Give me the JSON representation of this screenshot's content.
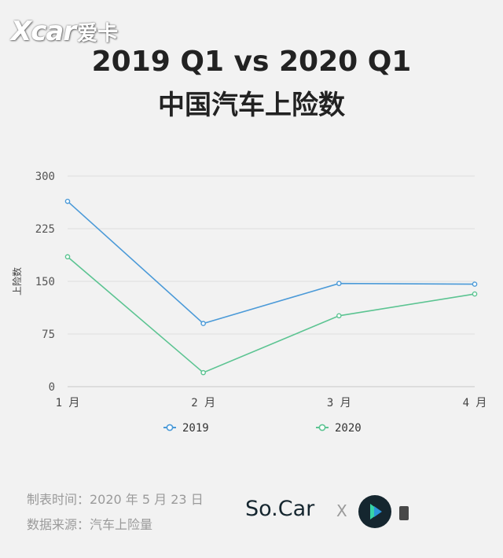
{
  "watermark": {
    "logo": "Xcar",
    "cn": "爱卡"
  },
  "title_line1": "2019 Q1 vs 2020 Q1",
  "title_line2": "中国汽车上险数",
  "chart_data": {
    "type": "line",
    "categories": [
      "1 月",
      "2 月",
      "3 月",
      "4 月"
    ],
    "series": [
      {
        "name": "2019",
        "values": [
          264,
          90,
          147,
          146
        ],
        "color": "#4b9ad8"
      },
      {
        "name": "2020",
        "values": [
          185,
          20,
          101,
          132
        ],
        "color": "#5cc492"
      }
    ],
    "title": "2019 Q1 vs 2020 Q1 中国汽车上险数",
    "xlabel": "",
    "ylabel": "上险数",
    "ylim": [
      0,
      300
    ],
    "yticks": [
      0,
      75,
      150,
      225,
      300
    ],
    "grid": true,
    "legend": "bottom"
  },
  "footer": {
    "line1": "制表时间：2020 年 5 月 23 日",
    "line2": "数据来源：汽车上险量"
  },
  "logos": {
    "brand": "So.Car",
    "x": "X"
  }
}
